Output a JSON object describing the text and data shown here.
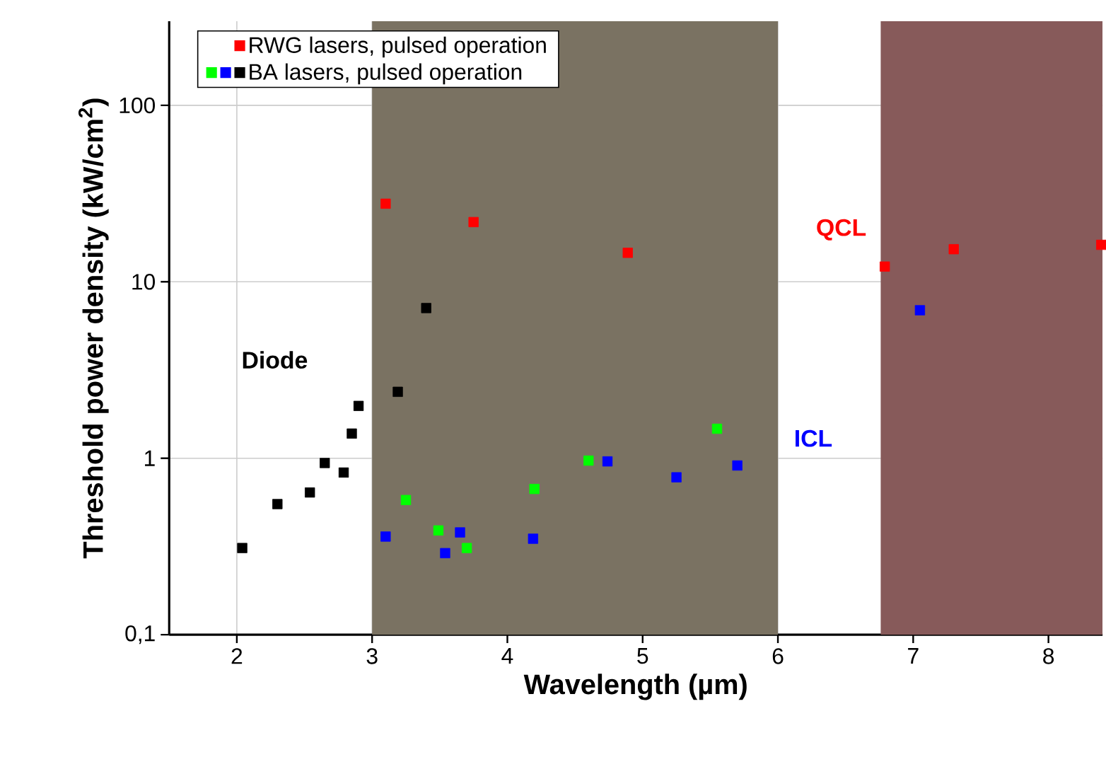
{
  "chart_data": {
    "type": "scatter",
    "xlabel": "Wavelength (µm)",
    "ylabel": "Threshold power density (kW/cm$^{2}$)",
    "xlim": [
      1.5,
      8.4
    ],
    "ylim": [
      0.1,
      300
    ],
    "log": "y",
    "xticks": [
      2,
      3,
      4,
      5,
      6,
      7,
      8
    ],
    "yticks": [
      {
        "value": 0.1,
        "label": "0,1"
      },
      1,
      10,
      100
    ],
    "grid": true,
    "legend": "top",
    "marker": "square",
    "series": [
      {
        "name": "RWG lasers, pulsed operation",
        "color": "#ff0000",
        "x": [
          3.1,
          3.75,
          4.89,
          6.79,
          7.3,
          8.39
        ],
        "values": [
          27.7,
          21.8,
          14.6,
          12.2,
          15.3,
          16.2
        ]
      },
      {
        "color": "#00ff00",
        "x": [
          3.25,
          3.49,
          3.7,
          4.2,
          4.6,
          5.55
        ],
        "values": [
          0.58,
          0.39,
          0.31,
          0.67,
          0.97,
          1.47
        ]
      },
      {
        "color": "#0000ff",
        "x": [
          3.1,
          3.54,
          3.65,
          4.19,
          4.74,
          5.25,
          5.7,
          7.05
        ],
        "values": [
          0.36,
          0.29,
          0.38,
          0.35,
          0.96,
          0.78,
          0.91,
          6.9
        ]
      },
      {
        "name": "BA lasers, pulsed operation",
        "color": "#000000",
        "x": [
          2.04,
          2.3,
          2.54,
          2.65,
          2.79,
          2.85,
          2.9,
          3.19,
          3.4
        ],
        "values": [
          0.31,
          0.55,
          0.64,
          0.94,
          0.83,
          1.38,
          1.98,
          2.38,
          7.1
        ]
      }
    ],
    "bands": [
      {
        "axis": "x",
        "from": 3.0,
        "to": 6.0,
        "color": "#7a7262"
      },
      {
        "axis": "x",
        "from": 6.76,
        "to": 8.4,
        "color": "#875a5a"
      }
    ],
    "annotations": [
      "Diode",
      "QCL",
      "ICL"
    ]
  }
}
